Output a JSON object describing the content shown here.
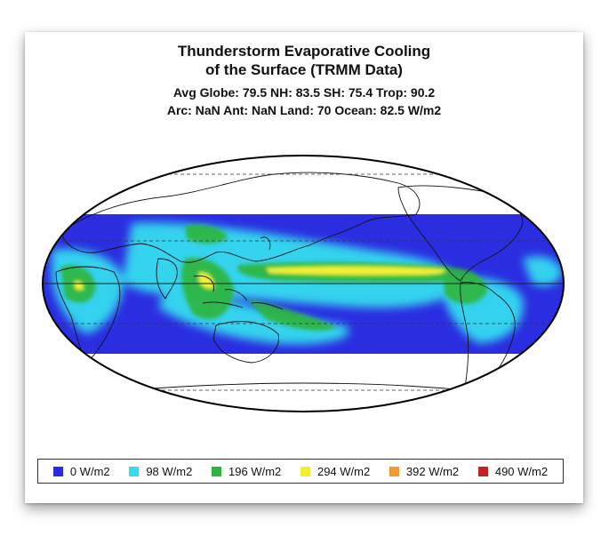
{
  "figure": {
    "title_line1": "Thunderstorm Evaporative Cooling",
    "title_line2": "of the Surface (TRMM Data)",
    "stats_line1": "Avg Globe: 79.5  NH: 83.5  SH: 75.4  Trop: 90.2",
    "stats_line2": "Arc: NaN  Ant: NaN  Land: 70 Ocean: 82.5 W/m2"
  },
  "legend": {
    "items": [
      {
        "label": "0 W/m2",
        "color": "#2b2ee0"
      },
      {
        "label": "98 W/m2",
        "color": "#35dcef"
      },
      {
        "label": "196 W/m2",
        "color": "#2fb53a"
      },
      {
        "label": "294 W/m2",
        "color": "#f3ee35"
      },
      {
        "label": "392 W/m2",
        "color": "#f19a32"
      },
      {
        "label": "490 W/m2",
        "color": "#c4221c"
      }
    ]
  },
  "map": {
    "projection": "mollweide",
    "data_band_latitudes": "approx. 35N to 35S",
    "colors": {
      "background": "#2b2ee0",
      "moderate": "#35dcef",
      "high": "#2fb53a",
      "very_high": "#f3ee35"
    }
  }
}
